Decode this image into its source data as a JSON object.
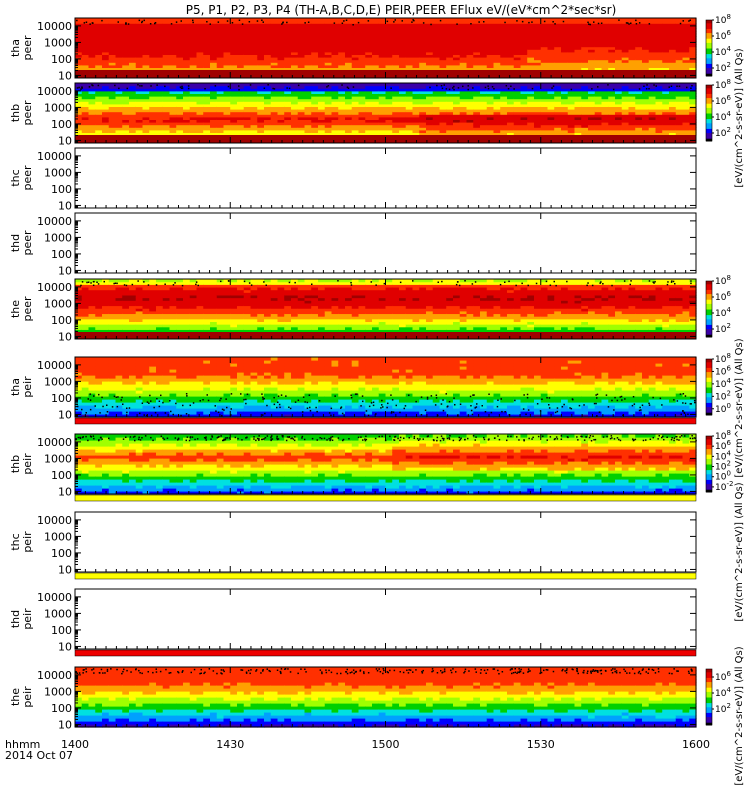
{
  "title": "P5, P1, P2, P3, P4 (TH-A,B,C,D,E) PEIR,PEER EFlux eV/(eV*cm^2*sec*sr)",
  "time_axis": {
    "label_line1": "hhmm",
    "label_line2": "2014 Oct 07",
    "ticks": [
      "1400",
      "1430",
      "1500",
      "1530",
      "1600"
    ],
    "tick_values": [
      0,
      30,
      60,
      90,
      120
    ],
    "range": [
      0,
      120
    ]
  },
  "colors": {
    "flux_scale": [
      "#000000",
      "#3b00a8",
      "#0000ff",
      "#00a0ff",
      "#00e0e0",
      "#00d000",
      "#a0ff00",
      "#ffff00",
      "#ffa000",
      "#ff3000",
      "#e00000",
      "#a00000"
    ],
    "fill_bar_red": "#ee0000",
    "fill_bar_yellow": "#ffff00"
  },
  "colorbar_labels": {
    "peer_top": "[eV/(cm^2-s-sr-eV)] (All Qs)",
    "peer_mid": "[eV/(cm^2-s-sr-eV)] (All Qs)",
    "peir_mid": "[eV/(cm^2-s-sr-eV)] (All Qs)",
    "peir_bottom": "[eV/(cm^2-s-sr-eV)] (All Qs)"
  },
  "chart_data": {
    "type": "heatmap",
    "x_unit": "minutes after 1400 UT",
    "y_scale": "log",
    "y_ticks": [
      10,
      100,
      1000,
      10000
    ],
    "panels": [
      {
        "probe": "tha",
        "species": "peer",
        "label": [
          "tha",
          "peer"
        ],
        "has_data": true,
        "ylim": [
          7,
          30000
        ],
        "colorbar": {
          "ticks": [
            "10^2",
            "10^4",
            "10^6",
            "10^8"
          ],
          "range_exp": [
            1,
            8
          ]
        }
      },
      {
        "probe": "thb",
        "species": "peer",
        "label": [
          "thb",
          "peer"
        ],
        "has_data": true,
        "ylim": [
          7,
          30000
        ],
        "colorbar": {
          "ticks": [
            "10^2",
            "10^4",
            "10^6",
            "10^8"
          ],
          "range_exp": [
            1,
            8
          ]
        }
      },
      {
        "probe": "thc",
        "species": "peer",
        "label": [
          "thc",
          "peer"
        ],
        "has_data": false,
        "ylim": [
          7,
          30000
        ]
      },
      {
        "probe": "thd",
        "species": "peer",
        "label": [
          "thd",
          "peer"
        ],
        "has_data": false,
        "ylim": [
          7,
          30000
        ]
      },
      {
        "probe": "the",
        "species": "peer",
        "label": [
          "the",
          "peer"
        ],
        "has_data": true,
        "ylim": [
          7,
          30000
        ],
        "colorbar": {
          "ticks": [
            "10^2",
            "10^4",
            "10^6",
            "10^8"
          ],
          "range_exp": [
            1,
            8
          ]
        }
      },
      {
        "probe": "tha",
        "species": "peir",
        "label": [
          "tha",
          "peir"
        ],
        "has_data": true,
        "ylim": [
          7,
          30000
        ],
        "colorbar": {
          "ticks": [
            "10^0",
            "10^2",
            "10^4",
            "10^6",
            "10^8"
          ],
          "range_exp": [
            -1,
            8
          ]
        }
      },
      {
        "probe": "thb",
        "species": "peir",
        "label": [
          "thb",
          "peir"
        ],
        "has_data": true,
        "ylim": [
          7,
          30000
        ],
        "colorbar": {
          "ticks": [
            "10^-2",
            "10^0",
            "10^2",
            "10^4",
            "10^6",
            "10^8"
          ],
          "range_exp": [
            -3,
            8
          ]
        }
      },
      {
        "probe": "thc",
        "species": "peir",
        "label": [
          "thc",
          "peir"
        ],
        "has_data": false,
        "ylim": [
          7,
          30000
        ]
      },
      {
        "probe": "thd",
        "species": "peir",
        "label": [
          "thd",
          "peir"
        ],
        "has_data": false,
        "ylim": [
          7,
          30000
        ]
      },
      {
        "probe": "the",
        "species": "peir",
        "label": [
          "the",
          "peir"
        ],
        "has_data": true,
        "ylim": [
          7,
          30000
        ],
        "colorbar": {
          "ticks": [
            "10^2",
            "10^4",
            "10^6"
          ],
          "range_exp": [
            0,
            7
          ]
        }
      }
    ]
  }
}
